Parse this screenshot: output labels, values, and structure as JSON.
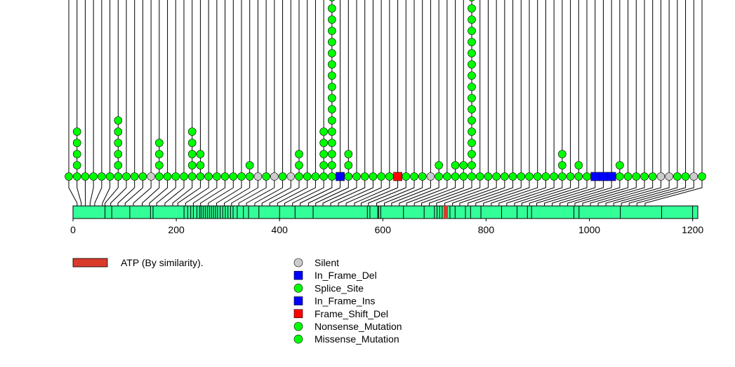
{
  "chart_data": {
    "type": "lollipop",
    "protein_length": 1210,
    "xlim": [
      0,
      1210
    ],
    "x_ticks": [
      "0",
      "200",
      "400",
      "600",
      "800",
      "1000",
      "1200"
    ],
    "x_tick_values": [
      0,
      200,
      400,
      600,
      800,
      1000,
      1200
    ],
    "domains": [
      {
        "label": "ATP (By similarity).",
        "start": 718,
        "end": 726,
        "color": "#d93a2b"
      }
    ],
    "domain_legend": [
      {
        "label": "ATP (By similarity).",
        "color": "#d93a2b"
      }
    ],
    "mutation_legend": [
      {
        "label": "Silent",
        "shape": "circle",
        "color": "#cccccc"
      },
      {
        "label": "In_Frame_Del",
        "shape": "square",
        "color": "#0000ff"
      },
      {
        "label": "Splice_Site",
        "shape": "circle",
        "color": "#00ff00"
      },
      {
        "label": "In_Frame_Ins",
        "shape": "square",
        "color": "#0000ff"
      },
      {
        "label": "Frame_Shift_Del",
        "shape": "square",
        "color": "#ff0000"
      },
      {
        "label": "Nonsense_Mutation",
        "shape": "circle",
        "color": "#00ff00"
      },
      {
        "label": "Missense_Mutation",
        "shape": "circle",
        "color": "#00ff00"
      }
    ],
    "mutations": [
      {
        "pos": 8,
        "count": 1,
        "type": "Missense_Mutation"
      },
      {
        "pos": 16,
        "count": 5,
        "type": "Missense_Mutation"
      },
      {
        "pos": 24,
        "count": 1,
        "type": "Missense_Mutation"
      },
      {
        "pos": 33,
        "count": 1,
        "type": "Missense_Mutation"
      },
      {
        "pos": 42,
        "count": 1,
        "type": "Missense_Mutation"
      },
      {
        "pos": 57,
        "count": 1,
        "type": "Missense_Mutation"
      },
      {
        "pos": 62,
        "count": 6,
        "type": "Missense_Mutation"
      },
      {
        "pos": 73,
        "count": 1,
        "type": "Missense_Mutation"
      },
      {
        "pos": 87,
        "count": 1,
        "type": "Missense_Mutation"
      },
      {
        "pos": 101,
        "count": 1,
        "type": "Missense_Mutation"
      },
      {
        "pos": 117,
        "count": 1,
        "type": "Silent"
      },
      {
        "pos": 134,
        "count": 4,
        "type": "Missense_Mutation"
      },
      {
        "pos": 148,
        "count": 1,
        "type": "Missense_Mutation"
      },
      {
        "pos": 162,
        "count": 1,
        "type": "Missense_Mutation"
      },
      {
        "pos": 178,
        "count": 1,
        "type": "Missense_Mutation"
      },
      {
        "pos": 193,
        "count": 5,
        "type": "Missense_Mutation"
      },
      {
        "pos": 203,
        "count": 3,
        "type": "Missense_Mutation"
      },
      {
        "pos": 218,
        "count": 1,
        "type": "Missense_Mutation"
      },
      {
        "pos": 233,
        "count": 1,
        "type": "Missense_Mutation"
      },
      {
        "pos": 247,
        "count": 1,
        "type": "Missense_Mutation"
      },
      {
        "pos": 262,
        "count": 1,
        "type": "Missense_Mutation"
      },
      {
        "pos": 278,
        "count": 1,
        "type": "Missense_Mutation"
      },
      {
        "pos": 293,
        "count": 2,
        "type": "Missense_Mutation"
      },
      {
        "pos": 307,
        "count": 1,
        "type": "Silent"
      },
      {
        "pos": 321,
        "count": 1,
        "type": "Missense_Mutation"
      },
      {
        "pos": 336,
        "count": 1,
        "type": "Silent"
      },
      {
        "pos": 352,
        "count": 1,
        "type": "Missense_Mutation"
      },
      {
        "pos": 366,
        "count": 1,
        "type": "Silent"
      },
      {
        "pos": 381,
        "count": 3,
        "type": "Missense_Mutation"
      },
      {
        "pos": 396,
        "count": 1,
        "type": "Missense_Mutation"
      },
      {
        "pos": 410,
        "count": 1,
        "type": "Missense_Mutation"
      },
      {
        "pos": 425,
        "count": 5,
        "type": "Missense_Mutation"
      },
      {
        "pos": 440,
        "count": 17,
        "type": "Missense_Mutation"
      },
      {
        "pos": 456,
        "count": 1,
        "type": "In_Frame_Del"
      },
      {
        "pos": 470,
        "count": 3,
        "type": "Missense_Mutation"
      },
      {
        "pos": 484,
        "count": 1,
        "type": "Missense_Mutation"
      },
      {
        "pos": 499,
        "count": 1,
        "type": "Missense_Mutation"
      },
      {
        "pos": 514,
        "count": 1,
        "type": "Missense_Mutation"
      },
      {
        "pos": 529,
        "count": 1,
        "type": "Missense_Mutation"
      },
      {
        "pos": 545,
        "count": 1,
        "type": "Missense_Mutation"
      },
      {
        "pos": 558,
        "count": 1,
        "type": "Frame_Shift_Del"
      },
      {
        "pos": 572,
        "count": 1,
        "type": "Missense_Mutation"
      },
      {
        "pos": 588,
        "count": 1,
        "type": "Missense_Mutation"
      },
      {
        "pos": 603,
        "count": 1,
        "type": "Missense_Mutation"
      },
      {
        "pos": 617,
        "count": 1,
        "type": "Silent"
      },
      {
        "pos": 632,
        "count": 2,
        "type": "Missense_Mutation"
      },
      {
        "pos": 646,
        "count": 1,
        "type": "Missense_Mutation"
      },
      {
        "pos": 661,
        "count": 2,
        "type": "Missense_Mutation"
      },
      {
        "pos": 675,
        "count": 2,
        "type": "Missense_Mutation"
      },
      {
        "pos": 690,
        "count": 17,
        "type": "Missense_Mutation"
      },
      {
        "pos": 704,
        "count": 1,
        "type": "Missense_Mutation"
      },
      {
        "pos": 720,
        "count": 1,
        "type": "Missense_Mutation"
      },
      {
        "pos": 735,
        "count": 1,
        "type": "Missense_Mutation"
      },
      {
        "pos": 749,
        "count": 1,
        "type": "Missense_Mutation"
      },
      {
        "pos": 765,
        "count": 1,
        "type": "Missense_Mutation"
      },
      {
        "pos": 780,
        "count": 1,
        "type": "Missense_Mutation"
      },
      {
        "pos": 795,
        "count": 1,
        "type": "Missense_Mutation"
      },
      {
        "pos": 810,
        "count": 1,
        "type": "Missense_Mutation"
      },
      {
        "pos": 825,
        "count": 1,
        "type": "Missense_Mutation"
      },
      {
        "pos": 840,
        "count": 1,
        "type": "Missense_Mutation"
      },
      {
        "pos": 855,
        "count": 3,
        "type": "Missense_Mutation"
      },
      {
        "pos": 869,
        "count": 1,
        "type": "Missense_Mutation"
      },
      {
        "pos": 884,
        "count": 2,
        "type": "Missense_Mutation"
      },
      {
        "pos": 898,
        "count": 1,
        "type": "Missense_Mutation"
      },
      {
        "pos": 913,
        "count": 1,
        "type": "In_Frame_Del"
      },
      {
        "pos": 928,
        "count": 1,
        "type": "In_Frame_Del"
      },
      {
        "pos": 943,
        "count": 1,
        "type": "In_Frame_Del"
      },
      {
        "pos": 958,
        "count": 2,
        "type": "Missense_Mutation"
      },
      {
        "pos": 972,
        "count": 1,
        "type": "Missense_Mutation"
      },
      {
        "pos": 987,
        "count": 1,
        "type": "Missense_Mutation"
      },
      {
        "pos": 1002,
        "count": 1,
        "type": "Missense_Mutation"
      },
      {
        "pos": 1017,
        "count": 1,
        "type": "Missense_Mutation"
      },
      {
        "pos": 1032,
        "count": 1,
        "type": "Silent"
      },
      {
        "pos": 1047,
        "count": 1,
        "type": "Silent"
      },
      {
        "pos": 1062,
        "count": 1,
        "type": "Missense_Mutation"
      },
      {
        "pos": 1077,
        "count": 1,
        "type": "Missense_Mutation"
      },
      {
        "pos": 1092,
        "count": 1,
        "type": "Silent"
      },
      {
        "pos": 1108,
        "count": 1,
        "type": "Missense_Mutation"
      }
    ],
    "protein_mut_sites": [
      62,
      75,
      110,
      150,
      155,
      215,
      222,
      228,
      233,
      240,
      245,
      248,
      252,
      256,
      260,
      264,
      268,
      272,
      276,
      280,
      285,
      290,
      295,
      300,
      305,
      310,
      318,
      330,
      340,
      360,
      400,
      430,
      465,
      570,
      575,
      590,
      592,
      596,
      640,
      680,
      700,
      705,
      710,
      715,
      720,
      725,
      730,
      740,
      760,
      770,
      790,
      830,
      860,
      880,
      888,
      970,
      980,
      1060,
      1140,
      1200
    ]
  }
}
